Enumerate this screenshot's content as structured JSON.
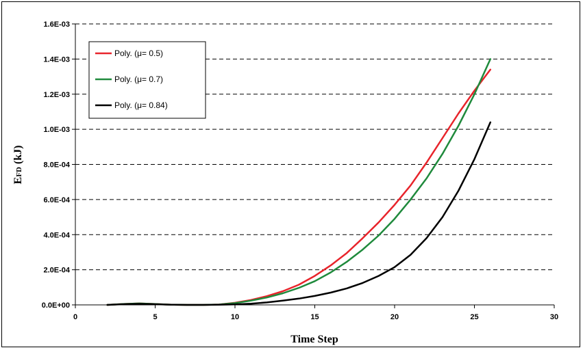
{
  "chart_data": {
    "type": "line",
    "xlabel": "Time Step",
    "ylabel_main": "E",
    "ylabel_sub": "FD",
    "ylabel_unit": " (kJ)",
    "xlim": [
      0,
      30
    ],
    "ylim": [
      0,
      0.0016
    ],
    "x_ticks": [
      {
        "value": 0,
        "label": "0"
      },
      {
        "value": 5,
        "label": "5"
      },
      {
        "value": 10,
        "label": "10"
      },
      {
        "value": 15,
        "label": "15"
      },
      {
        "value": 20,
        "label": "20"
      },
      {
        "value": 25,
        "label": "25"
      },
      {
        "value": 30,
        "label": "30"
      }
    ],
    "y_ticks": [
      {
        "value": 0,
        "label": "0.0E+00"
      },
      {
        "value": 0.0002,
        "label": "2.0E-04"
      },
      {
        "value": 0.0004,
        "label": "4.0E-04"
      },
      {
        "value": 0.0006,
        "label": "6.0E-04"
      },
      {
        "value": 0.0008,
        "label": "8.0E-04"
      },
      {
        "value": 0.001,
        "label": "1.0E-03"
      },
      {
        "value": 0.0012,
        "label": "1.2E-03"
      },
      {
        "value": 0.0014,
        "label": "1.4E-03"
      },
      {
        "value": 0.0016,
        "label": "1.6E-03"
      }
    ],
    "grid": "horizontal-dashed",
    "legend_position": "top-left",
    "x": [
      2,
      3,
      4,
      5,
      6,
      7,
      8,
      9,
      10,
      11,
      12,
      13,
      14,
      15,
      16,
      17,
      18,
      19,
      20,
      21,
      22,
      23,
      24,
      25,
      26
    ],
    "series": [
      {
        "name": "Poly. (μ= 0.5)",
        "color": "#e8242b",
        "values": [
          0,
          5e-06,
          8e-06,
          5e-06,
          1e-06,
          0,
          0,
          2e-06,
          1.2e-05,
          2.8e-05,
          5e-05,
          7.8e-05,
          0.000115,
          0.000165,
          0.000225,
          0.000295,
          0.00038,
          0.00047,
          0.00057,
          0.00068,
          0.00081,
          0.00095,
          0.00109,
          0.00122,
          0.00134
        ]
      },
      {
        "name": "Poly. (μ= 0.7)",
        "color": "#1f8a3c",
        "values": [
          0,
          5e-06,
          8e-06,
          5e-06,
          1e-06,
          0,
          0,
          2e-06,
          1e-05,
          2.4e-05,
          4.2e-05,
          6.6e-05,
          9.7e-05,
          0.000135,
          0.000185,
          0.000245,
          0.000315,
          0.000395,
          0.00049,
          0.0006,
          0.00072,
          0.00086,
          0.00102,
          0.0012,
          0.0014
        ]
      },
      {
        "name": "Poly. (μ= 0.84)",
        "color": "#000000",
        "values": [
          0,
          4e-06,
          6e-06,
          4e-06,
          1e-06,
          0,
          0,
          1e-06,
          3e-06,
          7e-06,
          1.4e-05,
          2.4e-05,
          3.6e-05,
          5.1e-05,
          7e-05,
          9.4e-05,
          0.000125,
          0.000165,
          0.000215,
          0.000285,
          0.00038,
          0.0005,
          0.00065,
          0.00083,
          0.00104
        ]
      }
    ]
  }
}
